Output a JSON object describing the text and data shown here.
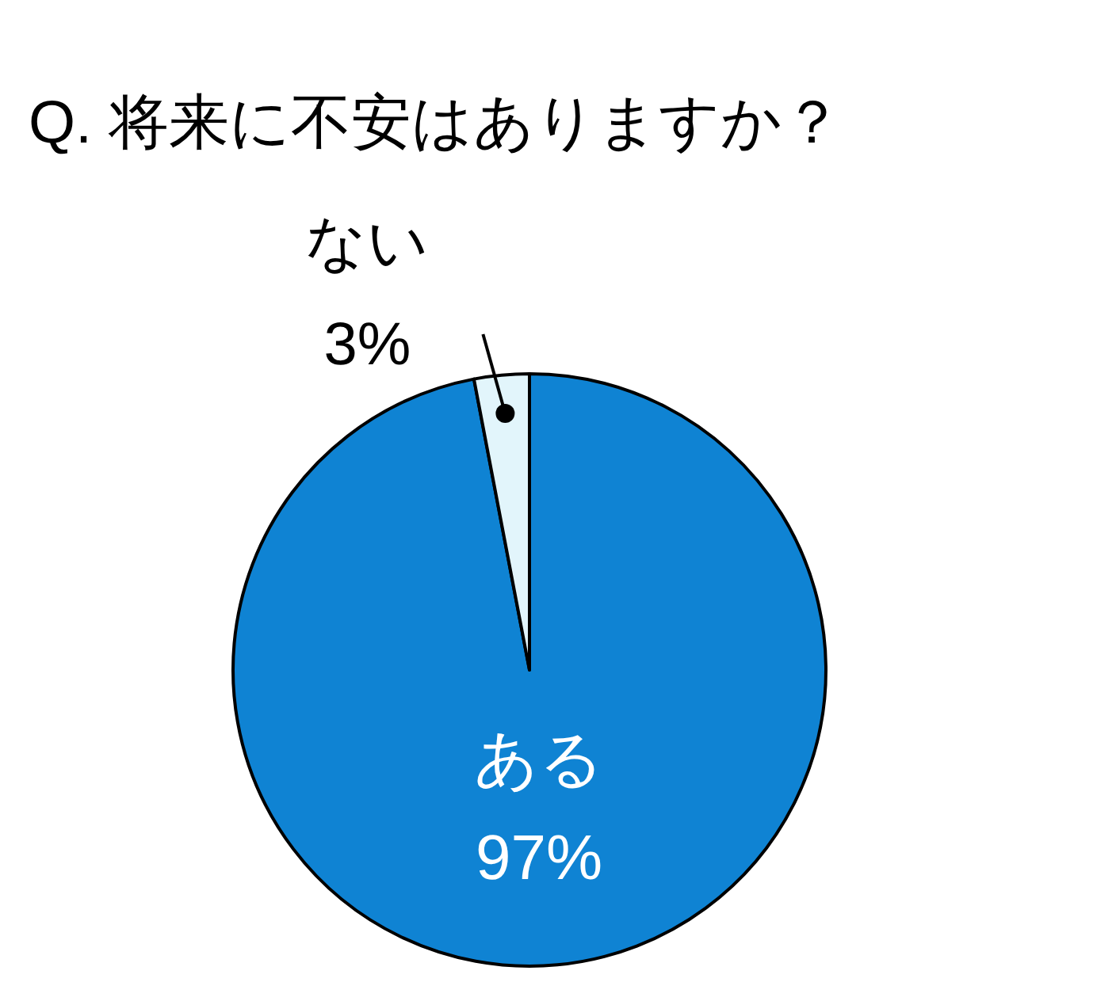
{
  "chart_data": {
    "type": "pie",
    "title": "Q. 将来に不安はありますか？",
    "categories": [
      "ある",
      "ない"
    ],
    "values": [
      97,
      3
    ],
    "colors": [
      "#0f83d3",
      "#e2f5fb"
    ],
    "value_labels": [
      "97%",
      "3%"
    ]
  }
}
